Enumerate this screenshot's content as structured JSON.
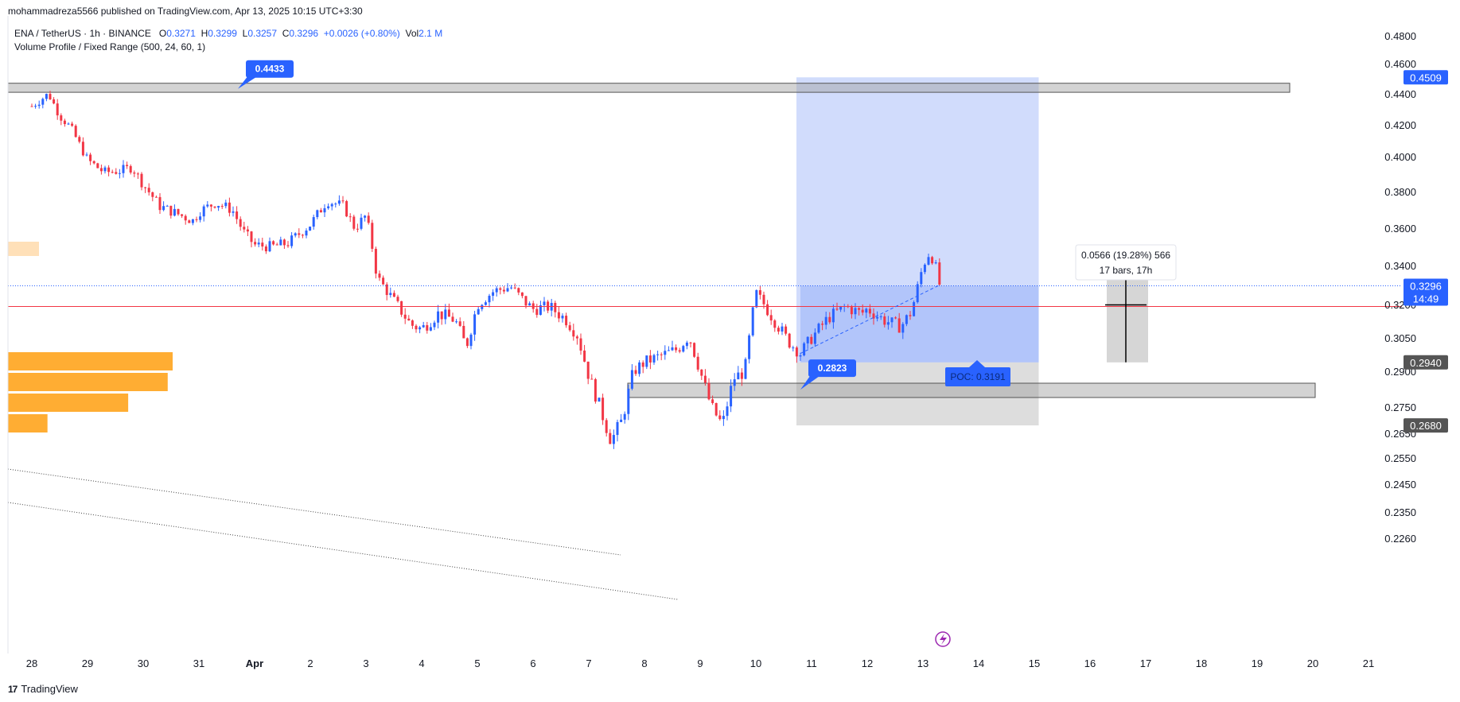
{
  "header": {
    "publisher_line": "mohammadreza5566 published on TradingView.com, Apr 13, 2025 10:15 UTC+3:30",
    "symbol": "ENA / TetherUS · 1h · BINANCE",
    "ohlc": {
      "o_label": "O",
      "o": "0.3271",
      "h_label": "H",
      "h": "0.3299",
      "l_label": "L",
      "l": "0.3257",
      "c_label": "C",
      "c": "0.3296",
      "change": "+0.0026 (+0.80%)",
      "vol_label": "Vol",
      "vol": "2.1 M"
    },
    "indicator": "Volume Profile / Fixed Range (500, 24, 60, 1)"
  },
  "footer": {
    "brand_logo": "17",
    "brand": "TradingView"
  },
  "colors": {
    "up": "#2962ff",
    "down": "#f23645",
    "blue_box": "#c5d3fb",
    "grey_box": "#cfcfcf",
    "vp": "#ffad33",
    "poc_line": "#f23645",
    "label_bg": "#2962ff"
  },
  "chart_data": {
    "type": "candlestick",
    "symbol": "ENA/USDT",
    "interval": "1h",
    "y_ticks": [
      "0.4800",
      "0.4600",
      "0.4400",
      "0.4200",
      "0.4000",
      "0.3800",
      "0.3600",
      "0.3400",
      "0.3200",
      "0.3050",
      "0.2900",
      "0.2750",
      "0.2650",
      "0.2550",
      "0.2450",
      "0.2350",
      "0.2260"
    ],
    "x_ticks": [
      "28",
      "29",
      "30",
      "31",
      "Apr",
      "2",
      "3",
      "4",
      "5",
      "6",
      "7",
      "8",
      "9",
      "10",
      "11",
      "12",
      "13",
      "14",
      "15",
      "16",
      "17",
      "18",
      "19",
      "20",
      "21"
    ],
    "price_badges": [
      {
        "value": "0.4509",
        "style": "blue"
      },
      {
        "value": "0.3296",
        "sub": "14:49",
        "style": "blue"
      },
      {
        "value": "0.2940",
        "style": "dark"
      },
      {
        "value": "0.2680",
        "style": "dark"
      }
    ],
    "path": [
      [
        "28",
        0.432
      ],
      [
        "28.3",
        0.44
      ],
      [
        "28.5",
        0.426
      ],
      [
        "28.7",
        0.418
      ],
      [
        "29",
        0.398
      ],
      [
        "29.3",
        0.391
      ],
      [
        "29.6",
        0.392
      ],
      [
        "29.8",
        0.394
      ],
      [
        "30",
        0.384
      ],
      [
        "30.3",
        0.372
      ],
      [
        "30.6",
        0.368
      ],
      [
        "30.9",
        0.364
      ],
      [
        "31",
        0.369
      ],
      [
        "31.3",
        0.374
      ],
      [
        "31.6",
        0.37
      ],
      [
        "31.8",
        0.358
      ],
      [
        "Apr",
        0.351
      ],
      [
        "Apr.3",
        0.35
      ],
      [
        "Apr.6",
        0.352
      ],
      [
        "2",
        0.362
      ],
      [
        "2.3",
        0.375
      ],
      [
        "2.6",
        0.372
      ],
      [
        "2.8",
        0.36
      ],
      [
        "3",
        0.367
      ],
      [
        "3.1",
        0.352
      ],
      [
        "3.2",
        0.334
      ],
      [
        "3.5",
        0.322
      ],
      [
        "3.8",
        0.311
      ],
      [
        "4",
        0.309
      ],
      [
        "4.3",
        0.316
      ],
      [
        "4.6",
        0.313
      ],
      [
        "4.8",
        0.301
      ],
      [
        "5",
        0.32
      ],
      [
        "5.3",
        0.327
      ],
      [
        "5.6",
        0.329
      ],
      [
        "5.9",
        0.32
      ],
      [
        "6",
        0.318
      ],
      [
        "6.3",
        0.319
      ],
      [
        "6.6",
        0.313
      ],
      [
        "6.8",
        0.306
      ],
      [
        "7",
        0.288
      ],
      [
        "7.2",
        0.275
      ],
      [
        "7.4",
        0.262
      ],
      [
        "7.6",
        0.27
      ],
      [
        "7.8",
        0.29
      ],
      [
        "8",
        0.294
      ],
      [
        "8.3",
        0.297
      ],
      [
        "8.6",
        0.3
      ],
      [
        "8.8",
        0.306
      ],
      [
        "9",
        0.29
      ],
      [
        "9.2",
        0.275
      ],
      [
        "9.4",
        0.268
      ],
      [
        "9.6",
        0.287
      ],
      [
        "9.8",
        0.29
      ],
      [
        "10",
        0.326
      ],
      [
        "10.3",
        0.314
      ],
      [
        "10.6",
        0.303
      ],
      [
        "10.8",
        0.298
      ],
      [
        "11",
        0.305
      ],
      [
        "11.3",
        0.314
      ],
      [
        "11.6",
        0.319
      ],
      [
        "11.9",
        0.316
      ],
      [
        "12",
        0.318
      ],
      [
        "12.3",
        0.313
      ],
      [
        "12.6",
        0.31
      ],
      [
        "12.8",
        0.317
      ],
      [
        "13",
        0.34
      ],
      [
        "13.1",
        0.346
      ],
      [
        "13.2",
        0.343
      ],
      [
        "13.3",
        0.33
      ]
    ],
    "volume_profile": [
      {
        "value": 100
      },
      {
        "value": 97
      },
      {
        "value": 73
      },
      {
        "value": 24
      }
    ],
    "zones": [
      {
        "from": 0.441,
        "to": 0.447
      },
      {
        "from": 0.279,
        "to": 0.285
      }
    ],
    "position": {
      "from_x": "10.7",
      "to_x": "15.05",
      "entry": 0.294,
      "target": 0.4509,
      "stop": 0.268
    },
    "annotations": [
      {
        "text": "0.4433",
        "x": "31.7",
        "y": 0.4433
      },
      {
        "text": "0.2823",
        "x": "10.8",
        "y": 0.2823
      },
      {
        "text": "POC: 0.3191",
        "x": "13.6",
        "y": 0.3191
      }
    ],
    "measure": {
      "line1": "0.0566 (19.28%) 566",
      "line2": "17 bars, 17h",
      "from": 0.294,
      "to": 0.35
    },
    "poc": 0.3191,
    "last_price": 0.3296
  }
}
